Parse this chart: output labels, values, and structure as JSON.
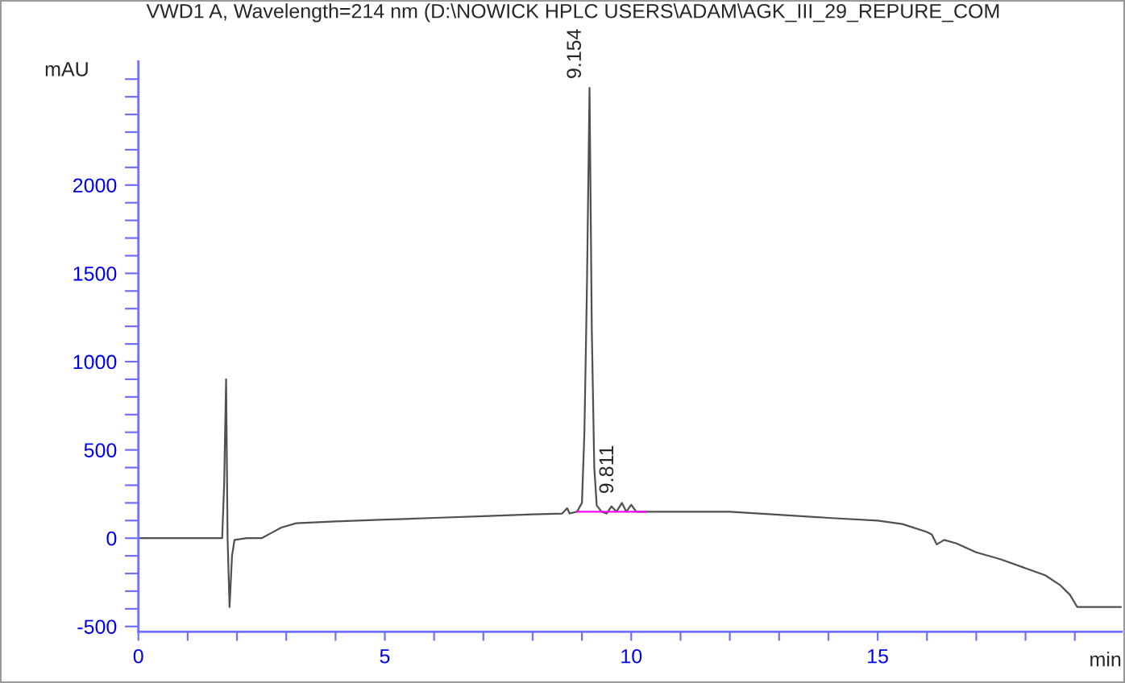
{
  "chart_data": {
    "type": "line",
    "title": "VWD1 A, Wavelength=214 nm (D:\\NOWICK HPLC USERS\\ADAM\\AGK_III_29_REPURE_COM",
    "xlabel": "min",
    "ylabel": "mAU",
    "series": [
      {
        "color": "#505050",
        "x": [
          0,
          1.0,
          1.7,
          1.74,
          1.78,
          1.81,
          1.85,
          1.9,
          1.95,
          2.2,
          2.5,
          2.7,
          2.9,
          3.2,
          4.0,
          5.0,
          6.0,
          7.0,
          8.0,
          8.6,
          8.7,
          8.75,
          8.9,
          9.0,
          9.05,
          9.1,
          9.154,
          9.2,
          9.25,
          9.3,
          9.4,
          9.5,
          9.6,
          9.7,
          9.811,
          9.9,
          10.0,
          10.1,
          10.3,
          11.0,
          12.0,
          13.0,
          14.0,
          15.0,
          15.5,
          16.0,
          16.1,
          16.2,
          16.35,
          16.6,
          17.0,
          17.5,
          18.0,
          18.4,
          18.7,
          18.9,
          19.05,
          19.95
        ],
        "values": [
          0,
          0,
          0,
          300,
          900,
          0,
          -390,
          -100,
          -10,
          0,
          0,
          30,
          60,
          85,
          95,
          105,
          115,
          125,
          135,
          140,
          170,
          140,
          150,
          200,
          600,
          1400,
          2550,
          1180,
          400,
          185,
          150,
          140,
          180,
          150,
          200,
          150,
          190,
          150,
          150,
          150,
          150,
          133,
          115,
          100,
          80,
          35,
          20,
          -35,
          -10,
          -30,
          -80,
          -120,
          -170,
          -210,
          -265,
          -320,
          -390,
          -390
        ]
      },
      {
        "color": "#ff00ff",
        "x": [
          8.9,
          10.3
        ],
        "values": [
          150,
          150
        ]
      }
    ],
    "xlim": [
      0,
      19.95
    ],
    "ylim": [
      -530,
      2700
    ],
    "xticks": [
      0,
      {
        "value": 1,
        "label": null
      },
      {
        "value": 2,
        "label": null
      },
      {
        "value": 3,
        "label": null
      },
      {
        "value": 4,
        "label": null
      },
      5,
      {
        "value": 6,
        "label": null
      },
      {
        "value": 7,
        "label": null
      },
      {
        "value": 8,
        "label": null
      },
      {
        "value": 9,
        "label": null
      },
      10,
      {
        "value": 11,
        "label": null
      },
      {
        "value": 12,
        "label": null
      },
      {
        "value": 13,
        "label": null
      },
      {
        "value": 14,
        "label": null
      },
      15,
      {
        "value": 16,
        "label": null
      },
      {
        "value": 17,
        "label": null
      },
      {
        "value": 18,
        "label": null
      },
      {
        "value": 19,
        "label": null
      }
    ],
    "yticks": [
      -500,
      {
        "value": -400,
        "label": null
      },
      {
        "value": -300,
        "label": null
      },
      {
        "value": -200,
        "label": null
      },
      {
        "value": -100,
        "label": null
      },
      0,
      {
        "value": 100,
        "label": null
      },
      {
        "value": 200,
        "label": null
      },
      {
        "value": 300,
        "label": null
      },
      {
        "value": 400,
        "label": null
      },
      500,
      {
        "value": 600,
        "label": null
      },
      {
        "value": 700,
        "label": null
      },
      {
        "value": 800,
        "label": null
      },
      {
        "value": 900,
        "label": null
      },
      1000,
      {
        "value": 1100,
        "label": null
      },
      {
        "value": 1200,
        "label": null
      },
      {
        "value": 1300,
        "label": null
      },
      {
        "value": 1400,
        "label": null
      },
      1500,
      {
        "value": 1600,
        "label": null
      },
      {
        "value": 1700,
        "label": null
      },
      {
        "value": 1800,
        "label": null
      },
      {
        "value": 1900,
        "label": null
      },
      2000,
      {
        "value": 2100,
        "label": null
      },
      {
        "value": 2200,
        "label": null
      },
      {
        "value": 2300,
        "label": null
      },
      {
        "value": 2400,
        "label": null
      },
      {
        "value": 2500,
        "label": null
      },
      {
        "value": 2600,
        "label": null
      }
    ],
    "annotations": [
      {
        "text": "9.154",
        "x": 9.154,
        "y": 2550
      },
      {
        "text": "9.811",
        "x": 9.811,
        "y": 200
      }
    ],
    "grid": false,
    "legend": false
  }
}
